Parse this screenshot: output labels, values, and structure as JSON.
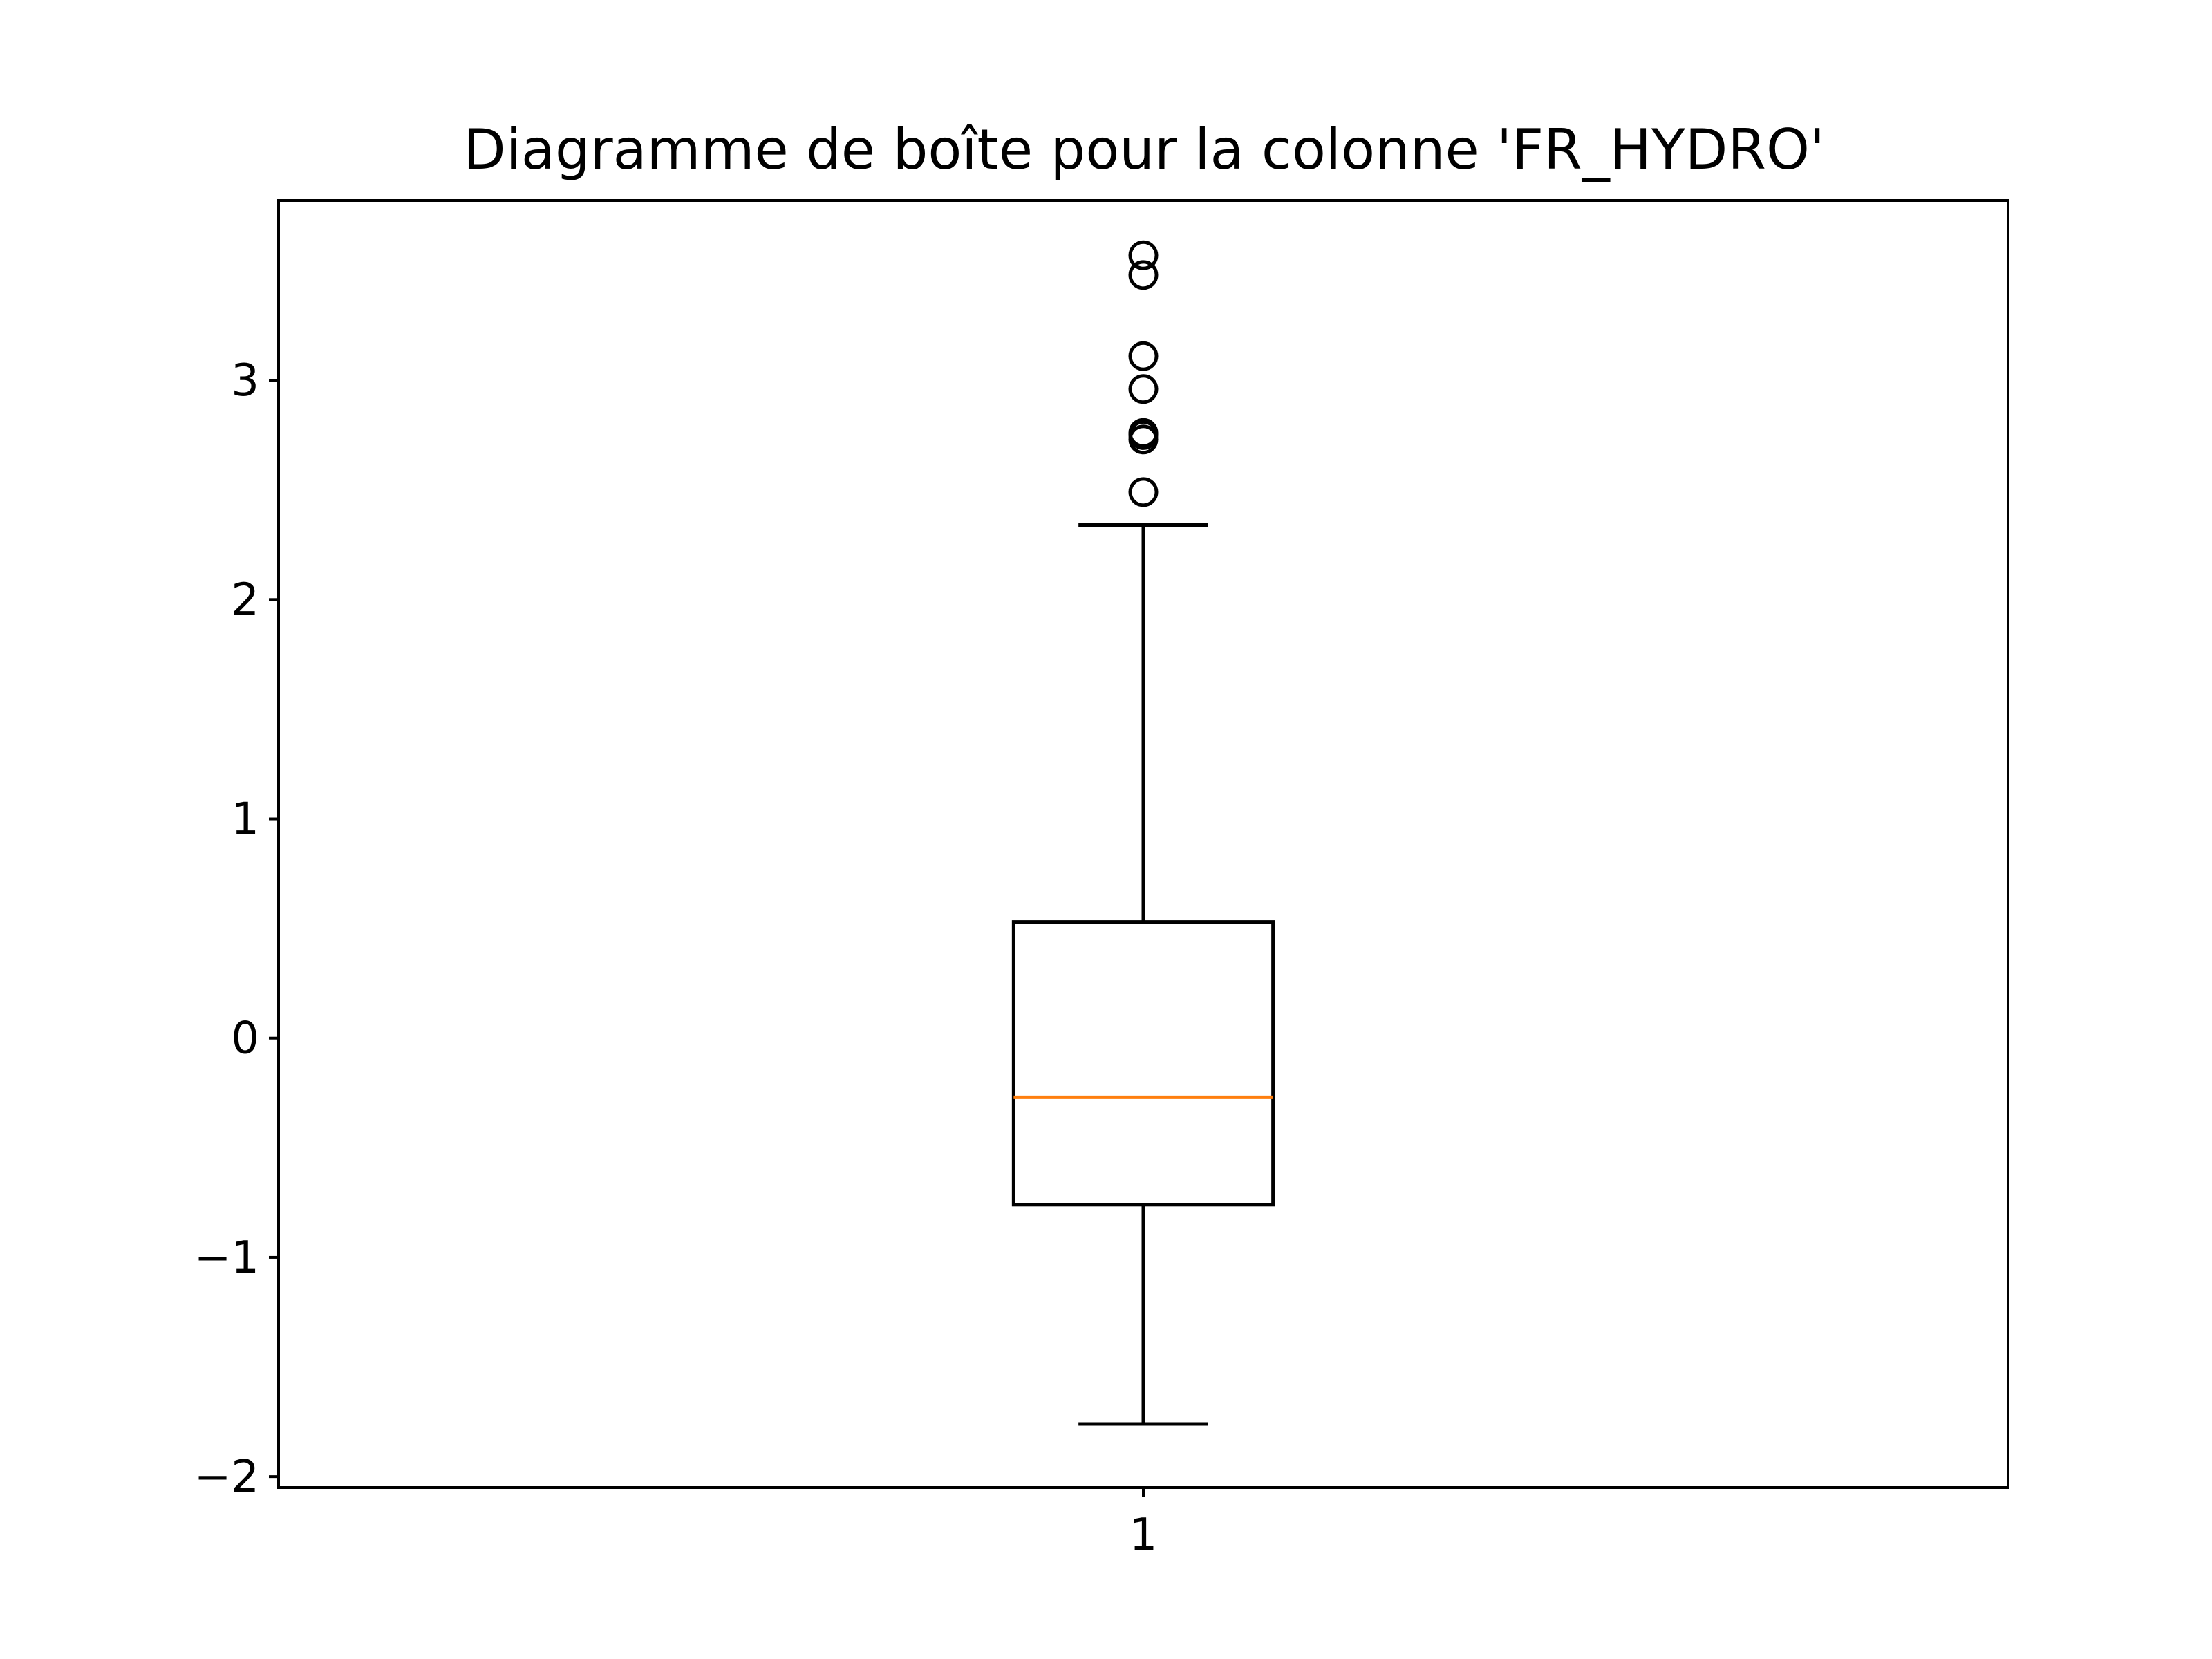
{
  "chart_data": {
    "type": "box",
    "title": "Diagramme de boîte pour la colonne 'FR_HYDRO'",
    "xlabel": "",
    "ylabel": "",
    "categories": [
      "1"
    ],
    "ylim": [
      -2.05,
      3.82
    ],
    "yticks": [
      -2,
      -1,
      0,
      1,
      2,
      3
    ],
    "ytick_labels": [
      "−2",
      "−1",
      "0",
      "1",
      "2",
      "3"
    ],
    "grid": false,
    "boxes": [
      {
        "category": "1",
        "whisker_low": -1.76,
        "q1": -0.76,
        "median": -0.27,
        "q3": 0.53,
        "whisker_high": 2.34,
        "outliers": [
          2.49,
          2.73,
          2.75,
          2.76,
          2.96,
          3.11,
          3.48,
          3.57
        ]
      }
    ],
    "colors": {
      "box": "#000000",
      "median": "#ff7f0e",
      "outlier": "#000000"
    }
  }
}
